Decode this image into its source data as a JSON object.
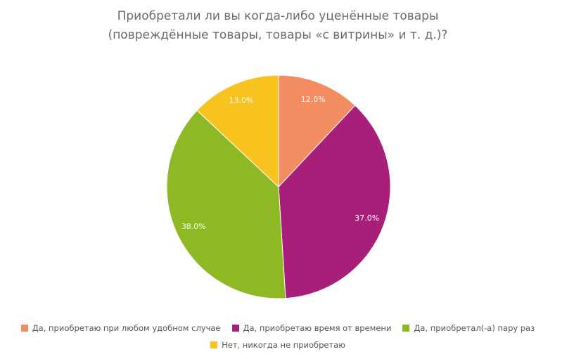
{
  "chart_data": {
    "type": "pie",
    "title": [
      "Приобретали ли вы когда-либо уценённые товары",
      "(повреждённые товары, товары «с витрины» и т. д.)?"
    ],
    "series": [
      {
        "name": "Да, приобретаю при любом удобном случае",
        "value": 12.0,
        "label": "12.0%",
        "color": "#f48c62"
      },
      {
        "name": "Да, приобретаю время от времени",
        "value": 37.0,
        "label": "37.0%",
        "color": "#a71f79"
      },
      {
        "name": "Да, приобретал(-а) пару раз",
        "value": 38.0,
        "label": "38.0%",
        "color": "#8eb824"
      },
      {
        "name": "Нет, никогда не приобретаю",
        "value": 13.0,
        "label": "13.0%",
        "color": "#f8c21f"
      }
    ],
    "legend_position": "bottom"
  }
}
